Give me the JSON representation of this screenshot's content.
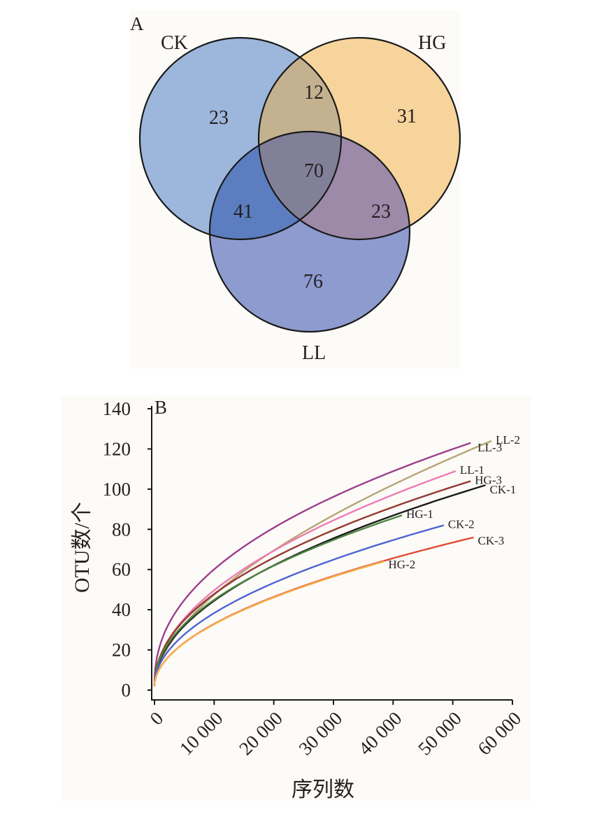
{
  "chart_data": [
    {
      "type": "venn",
      "panel_label": "A",
      "sets": [
        "CK",
        "HG",
        "LL"
      ],
      "regions": {
        "ck_only": 23,
        "hg_only": 31,
        "ll_only": 76,
        "ck_hg": 12,
        "ck_ll": 41,
        "hg_ll": 23,
        "ck_hg_ll": 70
      },
      "colors": {
        "CK": "#9db7dc",
        "HG": "#f7d49b",
        "LL": "#8e9bcf"
      }
    },
    {
      "type": "line",
      "panel_label": "B",
      "xlabel": "序列数",
      "ylabel": "OTU数/个",
      "xlim": [
        0,
        60000
      ],
      "ylim": [
        0,
        140
      ],
      "x_ticks": [
        "0",
        "10 000",
        "20 000",
        "30 000",
        "40 000",
        "50 000",
        "60 000"
      ],
      "y_ticks": [
        "0",
        "20",
        "40",
        "60",
        "80",
        "100",
        "120",
        "140"
      ],
      "grid": false,
      "legend": "inline labels at line ends",
      "series": [
        {
          "name": "LL-2",
          "color": "#b5a675",
          "x_end": 56500,
          "y_end": 124,
          "growth": 0.57
        },
        {
          "name": "LL-3",
          "color": "#9c3f8e",
          "x_end": 53000,
          "y_end": 123,
          "growth": 0.44
        },
        {
          "name": "LL-1",
          "color": "#ee7bb4",
          "x_end": 50500,
          "y_end": 109,
          "growth": 0.5
        },
        {
          "name": "HG-3",
          "color": "#933a30",
          "x_end": 53000,
          "y_end": 104,
          "growth": 0.48
        },
        {
          "name": "CK-1",
          "color": "#1a1a1a",
          "x_end": 55500,
          "y_end": 102,
          "growth": 0.5
        },
        {
          "name": "HG-1",
          "color": "#4f8543",
          "x_end": 41500,
          "y_end": 87,
          "growth": 0.48
        },
        {
          "name": "CK-2",
          "color": "#4f63d4",
          "x_end": 48500,
          "y_end": 82,
          "growth": 0.5
        },
        {
          "name": "CK-3",
          "color": "#e04a32",
          "x_end": 53500,
          "y_end": 76,
          "growth": 0.52
        },
        {
          "name": "HG-2",
          "color": "#f7b04f",
          "x_end": 38500,
          "y_end": 64,
          "growth": 0.52
        }
      ]
    }
  ]
}
